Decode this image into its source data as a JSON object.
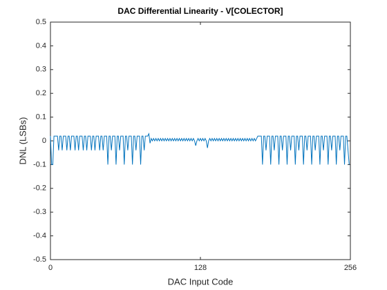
{
  "chart_data": {
    "type": "line",
    "title": "DAC Differential Linearity - V[COLECTOR]",
    "xlabel": "DAC Input Code",
    "ylabel": "DNL (LSBs)",
    "color": "#0072bd",
    "xlim": [
      0,
      256
    ],
    "xticks": [
      0,
      128,
      256
    ],
    "ylim": [
      -0.5,
      0.5
    ],
    "yticks": [
      -0.5,
      -0.4,
      -0.3,
      -0.2,
      -0.1,
      0,
      0.1,
      0.2,
      0.3,
      0.4,
      0.5
    ],
    "box": true,
    "x": [
      0,
      1,
      2,
      3,
      4,
      5,
      6,
      7,
      8,
      9,
      10,
      11,
      12,
      13,
      14,
      15,
      16,
      17,
      18,
      19,
      20,
      21,
      22,
      23,
      24,
      25,
      26,
      27,
      28,
      29,
      30,
      31,
      32,
      33,
      34,
      35,
      36,
      37,
      38,
      39,
      40,
      41,
      42,
      43,
      44,
      45,
      46,
      47,
      48,
      49,
      50,
      51,
      52,
      53,
      54,
      55,
      56,
      57,
      58,
      59,
      60,
      61,
      62,
      63,
      64,
      65,
      66,
      67,
      68,
      69,
      70,
      71,
      72,
      73,
      74,
      75,
      76,
      77,
      78,
      79,
      80,
      81,
      82,
      83,
      84,
      85,
      86,
      87,
      88,
      89,
      90,
      91,
      92,
      93,
      94,
      95,
      96,
      97,
      98,
      99,
      100,
      101,
      102,
      103,
      104,
      105,
      106,
      107,
      108,
      109,
      110,
      111,
      112,
      113,
      114,
      115,
      116,
      117,
      118,
      119,
      120,
      121,
      122,
      123,
      124,
      125,
      126,
      127,
      128,
      129,
      130,
      131,
      132,
      133,
      134,
      135,
      136,
      137,
      138,
      139,
      140,
      141,
      142,
      143,
      144,
      145,
      146,
      147,
      148,
      149,
      150,
      151,
      152,
      153,
      154,
      155,
      156,
      157,
      158,
      159,
      160,
      161,
      162,
      163,
      164,
      165,
      166,
      167,
      168,
      169,
      170,
      171,
      172,
      173,
      174,
      175,
      176,
      177,
      178,
      179,
      180,
      181,
      182,
      183,
      184,
      185,
      186,
      187,
      188,
      189,
      190,
      191,
      192,
      193,
      194,
      195,
      196,
      197,
      198,
      199,
      200,
      201,
      202,
      203,
      204,
      205,
      206,
      207,
      208,
      209,
      210,
      211,
      212,
      213,
      214,
      215,
      216,
      217,
      218,
      219,
      220,
      221,
      222,
      223,
      224,
      225,
      226,
      227,
      228,
      229,
      230,
      231,
      232,
      233,
      234,
      235,
      236,
      237,
      238,
      239,
      240,
      241,
      242,
      243,
      244,
      245,
      246,
      247,
      248,
      249,
      250,
      251,
      252,
      253,
      254,
      255
    ],
    "values": [
      0.02,
      -0.1,
      -0.1,
      0.02,
      0.02,
      0.02,
      0.02,
      -0.04,
      0.02,
      0.02,
      -0.04,
      0.02,
      0.02,
      0.02,
      -0.04,
      0.02,
      0.02,
      -0.04,
      0.02,
      0.02,
      0.02,
      -0.04,
      0.02,
      0.02,
      -0.04,
      0.02,
      0.02,
      0.02,
      -0.04,
      0.02,
      0.02,
      -0.04,
      0.02,
      0.02,
      0.02,
      -0.04,
      0.02,
      0.02,
      -0.04,
      0.02,
      0.02,
      0.02,
      -0.04,
      0.02,
      0.02,
      -0.04,
      0.02,
      0.02,
      0.02,
      -0.1,
      0.02,
      0.02,
      -0.04,
      0.02,
      0.02,
      0.02,
      -0.1,
      0.02,
      0.02,
      -0.04,
      0.02,
      0.02,
      0.02,
      -0.1,
      0.02,
      0.02,
      -0.04,
      0.02,
      0.02,
      0.02,
      -0.1,
      0.02,
      0.02,
      -0.04,
      0.02,
      0.02,
      0.02,
      -0.1,
      0.02,
      0.02,
      -0.04,
      0.02,
      0.02,
      0.02,
      0.03,
      -0.01,
      0.01,
      0,
      0.01,
      0,
      0.01,
      0,
      0.01,
      0,
      0.01,
      0,
      0.01,
      0,
      0.01,
      0,
      0.01,
      0,
      0.01,
      0,
      0.01,
      0,
      0.01,
      0,
      0.01,
      0,
      0.01,
      0,
      0.01,
      0,
      0.01,
      0,
      0.01,
      0,
      0.01,
      0,
      0.01,
      0,
      0.01,
      0,
      -0.02,
      0,
      0.01,
      0,
      0.01,
      0,
      0.01,
      0,
      0.01,
      0,
      -0.03,
      0,
      0.01,
      0,
      0.01,
      0,
      0.01,
      0,
      0.01,
      0,
      0.01,
      0,
      0.01,
      0,
      0.01,
      0,
      0.01,
      0,
      0.01,
      0,
      0.01,
      0,
      0.01,
      0,
      0.01,
      0,
      0.01,
      0,
      0.01,
      0,
      0.01,
      0,
      0.01,
      0,
      0.01,
      0,
      0.01,
      0,
      0.01,
      0,
      0.01,
      0,
      0.01,
      0.02,
      0.02,
      0.02,
      0.02,
      -0.1,
      0.02,
      0.02,
      -0.04,
      0.02,
      0.02,
      0.02,
      -0.1,
      0.02,
      0.02,
      -0.04,
      0.02,
      0.02,
      0.02,
      -0.1,
      0.02,
      0.02,
      -0.04,
      0.02,
      0.02,
      0.02,
      -0.1,
      0.02,
      0.02,
      -0.04,
      0.02,
      0.02,
      0.02,
      -0.1,
      0.02,
      0.02,
      -0.04,
      0.02,
      0.02,
      0.02,
      -0.1,
      0.02,
      0.02,
      -0.04,
      0.02,
      0.02,
      0.02,
      -0.1,
      0.02,
      0.02,
      -0.04,
      0.02,
      0.02,
      0.02,
      -0.1,
      0.02,
      0.02,
      -0.04,
      0.02,
      0.02,
      0.02,
      -0.1,
      0.02,
      0.02,
      -0.04,
      0.02,
      0.02,
      0.02,
      -0.1,
      0.02,
      0.02,
      -0.04,
      0.02,
      0.02,
      0.02,
      -0.1,
      0.02,
      0.02,
      -0.04,
      -0.1
    ]
  }
}
